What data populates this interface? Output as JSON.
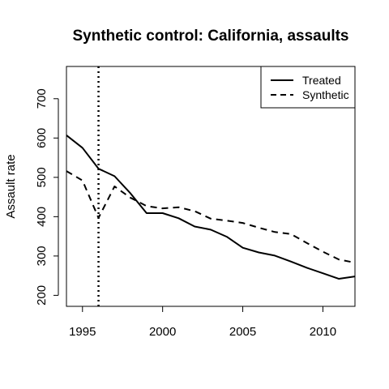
{
  "chart_data": {
    "type": "line",
    "title": "Synthetic control: California, assaults",
    "xlabel": "",
    "ylabel": "Assault rate",
    "xlim": [
      1994,
      2012
    ],
    "ylim": [
      172,
      782
    ],
    "x_ticks": [
      1995,
      2000,
      2005,
      2010
    ],
    "y_ticks": [
      200,
      300,
      400,
      500,
      600,
      700
    ],
    "grid": false,
    "legend_position": "top-right",
    "treatment_year": 1996,
    "x": [
      1994,
      1995,
      1996,
      1997,
      1998,
      1999,
      2000,
      2001,
      2002,
      2003,
      2004,
      2005,
      2006,
      2007,
      2008,
      2009,
      2010,
      2011,
      2012
    ],
    "series": [
      {
        "name": "Treated",
        "line_style": "solid",
        "color": "#000000",
        "values": [
          607,
          575,
          522,
          503,
          459,
          409,
          409,
          396,
          375,
          367,
          349,
          321,
          309,
          301,
          286,
          270,
          256,
          242,
          248
        ]
      },
      {
        "name": "Synthetic",
        "line_style": "dashed",
        "color": "#000000",
        "values": [
          516,
          492,
          397,
          477,
          448,
          427,
          421,
          424,
          414,
          395,
          390,
          384,
          372,
          361,
          356,
          333,
          311,
          291,
          283
        ]
      }
    ]
  }
}
